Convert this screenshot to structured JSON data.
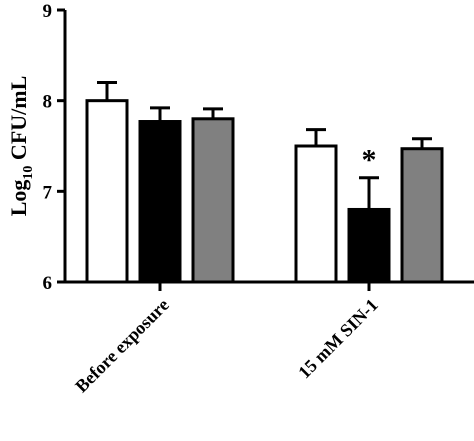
{
  "chart_data": {
    "type": "bar",
    "ylabel": {
      "base": "Log",
      "sub": "10",
      "rest": " CFU/mL"
    },
    "ylim": [
      6,
      9
    ],
    "yticks": [
      "6",
      "7",
      "8",
      "9"
    ],
    "categories": [
      "Before exposure",
      "15 mM SIN-1"
    ],
    "series": [
      {
        "color": "#ffffff",
        "values": [
          8.0,
          7.5
        ],
        "errors": [
          0.2,
          0.18
        ]
      },
      {
        "color": "#000000",
        "values": [
          7.77,
          6.8
        ],
        "errors": [
          0.15,
          0.35
        ]
      },
      {
        "color": "#808080",
        "values": [
          7.8,
          7.47
        ],
        "errors": [
          0.11,
          0.11
        ]
      }
    ],
    "annotations": [
      {
        "text": "*",
        "category": 1,
        "series": 1
      }
    ],
    "grid": false,
    "legend": "none"
  }
}
